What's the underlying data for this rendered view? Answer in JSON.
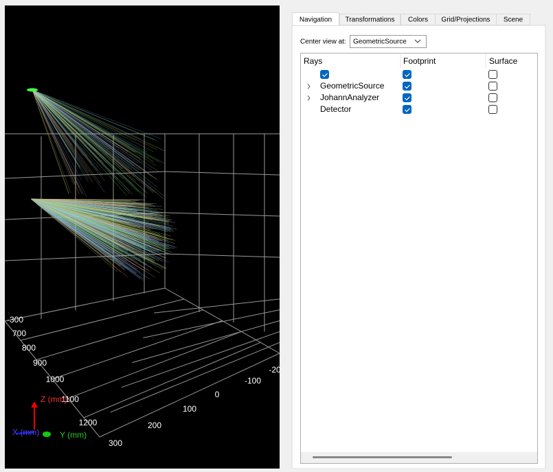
{
  "viewport": {
    "tick_labels": [
      "-300",
      "700",
      "800",
      "900",
      "1000",
      "1100",
      "1200",
      "300",
      "200",
      "100",
      "0",
      "-100",
      "-20"
    ],
    "axis_labels": {
      "z": "Z (mm)",
      "x": "X (mm)",
      "y": "Y (mm)"
    }
  },
  "tabs": {
    "items": [
      "Navigation",
      "Transformations",
      "Colors",
      "Grid/Projections",
      "Scene"
    ],
    "active": 0
  },
  "center_view": {
    "label": "Center view at:",
    "value": "GeometricSource"
  },
  "tree": {
    "columns": [
      "Rays",
      "Footprint",
      "Surface"
    ],
    "rows": [
      {
        "rays": true,
        "footprint": true,
        "surface": false
      },
      {
        "name": "GeometricSource",
        "expandable": true,
        "footprint": true,
        "surface": false
      },
      {
        "name": "JohannAnalyzer",
        "expandable": true,
        "footprint": true,
        "surface": false
      },
      {
        "name": "Detector",
        "expandable": false,
        "footprint": true,
        "surface": false
      }
    ]
  }
}
